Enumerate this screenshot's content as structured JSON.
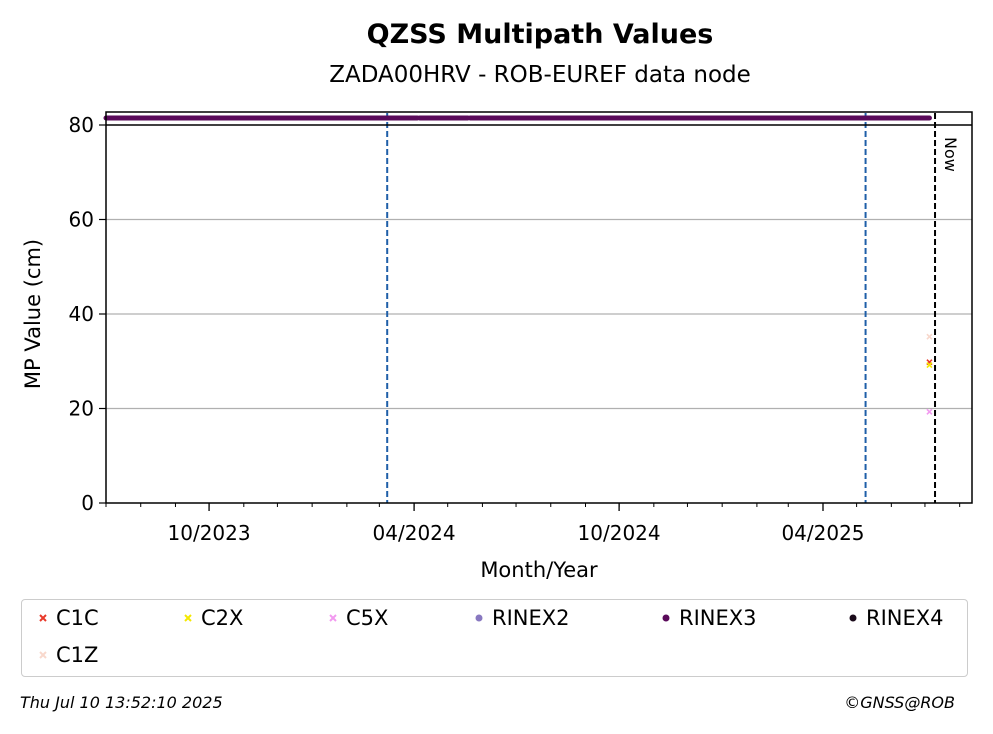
{
  "chart_data": {
    "type": "scatter",
    "title": "QZSS Multipath Values",
    "subtitle": "ZADA00HRV - ROB-EUREF data node",
    "xlabel": "Month/Year",
    "ylabel": "MP Value (cm)",
    "xlim": [
      "2023-07-01",
      "2025-08-12"
    ],
    "ylim": [
      0,
      80
    ],
    "yticks": [
      0,
      20,
      40,
      60,
      80
    ],
    "xticks": [
      {
        "date": "2023-10-01",
        "label": "10/2023"
      },
      {
        "date": "2024-04-01",
        "label": "04/2024"
      },
      {
        "date": "2024-10-01",
        "label": "10/2024"
      },
      {
        "date": "2025-04-01",
        "label": "04/2025"
      }
    ],
    "grid": "y",
    "ref_lines": [
      {
        "date": "2024-03-08",
        "color": "#1f5fa8"
      },
      {
        "date": "2025-05-09",
        "color": "#1f5fa8"
      }
    ],
    "now_line": {
      "date": "2025-07-10",
      "label": "Now"
    },
    "top_band": {
      "series": "RINEX3",
      "from": "2023-07-01",
      "to": "2025-07-05",
      "gaps": [
        [
          "2024-04-04",
          "2024-04-06"
        ],
        [
          "2024-05-19",
          "2024-05-21"
        ]
      ]
    },
    "series": [
      {
        "name": "C1C",
        "color": "#e8392a",
        "marker": "x",
        "x": [
          "2025-07-05"
        ],
        "y": [
          29.8
        ]
      },
      {
        "name": "C2X",
        "color": "#f5e800",
        "marker": "x",
        "x": [
          "2025-07-05"
        ],
        "y": [
          29.2
        ]
      },
      {
        "name": "C5X",
        "color": "#f29af0",
        "marker": "x",
        "x": [
          "2025-07-05"
        ],
        "y": [
          19.3
        ]
      },
      {
        "name": "RINEX2",
        "color": "#8878c0",
        "marker": "dot",
        "x": [],
        "y": []
      },
      {
        "name": "RINEX3",
        "color": "#5a0a5a",
        "marker": "dot",
        "x": [],
        "y": []
      },
      {
        "name": "RINEX4",
        "color": "#1a0a1a",
        "marker": "dot",
        "x": [],
        "y": []
      },
      {
        "name": "C1Z",
        "color": "#f8d8cc",
        "marker": "x",
        "x": [
          "2025-07-05"
        ],
        "y": [
          35.2
        ]
      }
    ]
  },
  "footer": {
    "timestamp": "Thu Jul 10 13:52:10 2025",
    "credit": "©GNSS@ROB"
  }
}
